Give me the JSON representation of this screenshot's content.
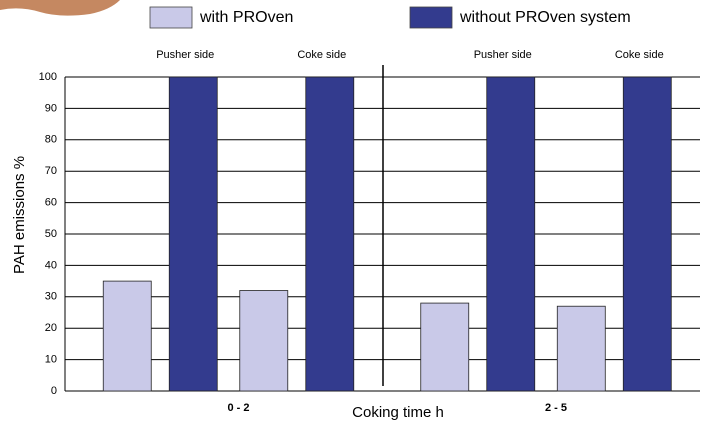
{
  "chart_data": {
    "type": "bar",
    "categories": [
      "Pusher side",
      "Coke side",
      "Pusher side",
      "Coke side"
    ],
    "group_labels": [
      "0 - 2",
      "2 - 5"
    ],
    "x_label": "Coking time h",
    "y_label": "PAH emissions %",
    "series": [
      {
        "name": "with PROven",
        "color": "#c9c9e8",
        "values": [
          35,
          32,
          28,
          27
        ]
      },
      {
        "name": "without PROven system",
        "color": "#333b8e",
        "values": [
          100,
          100,
          100,
          100
        ]
      }
    ],
    "ylim": [
      0,
      100
    ],
    "yticks": [
      0,
      10,
      20,
      30,
      40,
      50,
      60,
      70,
      80,
      90,
      100
    ],
    "grid": true
  }
}
